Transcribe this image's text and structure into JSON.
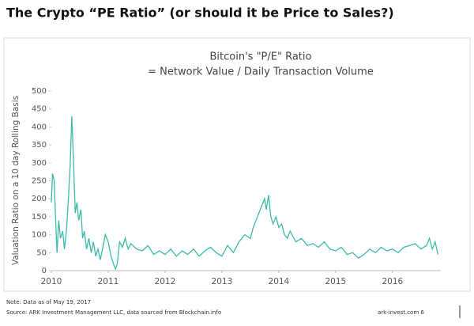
{
  "page_title": "The Crypto “PE Ratio” (or should it be Price to Sales?)",
  "chart_data": {
    "type": "line",
    "title": [
      "Bitcoin's \"P/E\" Ratio",
      "= Network Value / Daily Transaction Volume"
    ],
    "y_label": "Valuation Ratio on a 10 day Rolling Basis",
    "x": [
      2010.0,
      2010.02,
      2010.05,
      2010.08,
      2010.1,
      2010.13,
      2010.16,
      2010.2,
      2010.23,
      2010.27,
      2010.3,
      2010.33,
      2010.36,
      2010.39,
      2010.42,
      2010.45,
      2010.48,
      2010.52,
      2010.55,
      2010.58,
      2010.62,
      2010.66,
      2010.7,
      2010.74,
      2010.78,
      2010.82,
      2010.86,
      2010.9,
      2010.95,
      2011.0,
      2011.05,
      2011.1,
      2011.13,
      2011.16,
      2011.2,
      2011.25,
      2011.3,
      2011.35,
      2011.4,
      2011.5,
      2011.6,
      2011.7,
      2011.8,
      2011.9,
      2012.0,
      2012.1,
      2012.2,
      2012.3,
      2012.4,
      2012.5,
      2012.6,
      2012.7,
      2012.8,
      2012.9,
      2013.0,
      2013.1,
      2013.2,
      2013.3,
      2013.4,
      2013.5,
      2013.55,
      2013.6,
      2013.65,
      2013.7,
      2013.75,
      2013.78,
      2013.82,
      2013.86,
      2013.9,
      2013.95,
      2014.0,
      2014.05,
      2014.1,
      2014.15,
      2014.2,
      2014.3,
      2014.4,
      2014.5,
      2014.6,
      2014.7,
      2014.8,
      2014.9,
      2015.0,
      2015.1,
      2015.2,
      2015.3,
      2015.4,
      2015.5,
      2015.6,
      2015.7,
      2015.8,
      2015.9,
      2016.0,
      2016.1,
      2016.2,
      2016.3,
      2016.4,
      2016.5,
      2016.6,
      2016.65,
      2016.7,
      2016.75,
      2016.8
    ],
    "series": [
      {
        "name": "P/E Ratio",
        "color": "#3dbba7",
        "values": [
          190,
          270,
          250,
          120,
          50,
          140,
          90,
          110,
          60,
          120,
          200,
          290,
          430,
          300,
          160,
          190,
          140,
          170,
          90,
          110,
          60,
          90,
          50,
          80,
          40,
          60,
          30,
          60,
          100,
          80,
          40,
          15,
          5,
          20,
          80,
          65,
          90,
          60,
          75,
          60,
          55,
          70,
          45,
          55,
          45,
          60,
          40,
          55,
          45,
          60,
          40,
          55,
          65,
          50,
          40,
          70,
          50,
          80,
          100,
          90,
          120,
          140,
          160,
          180,
          200,
          170,
          210,
          150,
          130,
          150,
          120,
          130,
          100,
          90,
          110,
          80,
          90,
          70,
          75,
          65,
          80,
          60,
          55,
          65,
          45,
          50,
          35,
          45,
          60,
          50,
          65,
          55,
          60,
          50,
          65,
          70,
          75,
          60,
          70,
          90,
          60,
          80,
          45
        ]
      }
    ],
    "xlim": [
      2010,
      2016.85
    ],
    "xticks": [
      2010,
      2011,
      2012,
      2013,
      2014,
      2015,
      2016
    ],
    "ylim": [
      0,
      500
    ],
    "yticks": [
      0,
      50,
      100,
      150,
      200,
      250,
      300,
      350,
      400,
      450,
      500
    ]
  },
  "footer": {
    "note": "Note: Data as of May 19, 2017",
    "source": "Source: ARK Investment Management LLC, data sourced from Blockchain.info",
    "page": "ark-invest.com 6"
  }
}
